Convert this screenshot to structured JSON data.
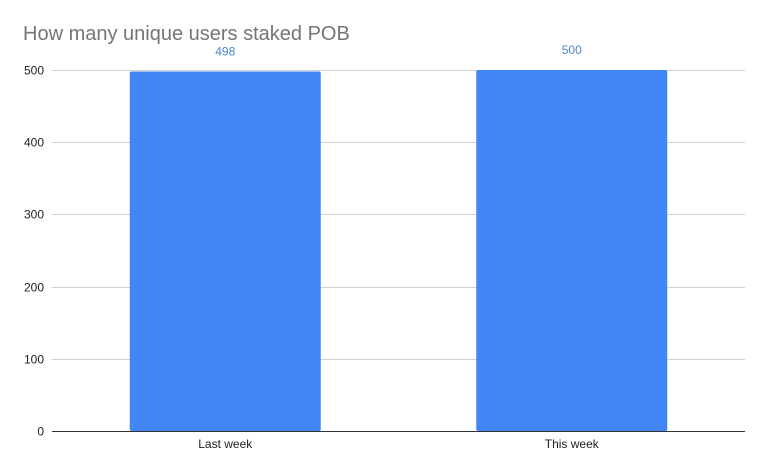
{
  "chart_data": {
    "type": "bar",
    "title": "How many unique users staked POB",
    "xlabel": "",
    "ylabel": "",
    "categories": [
      "Last week",
      "This week"
    ],
    "values": [
      498,
      500
    ],
    "data_labels": [
      "498",
      "500"
    ],
    "y_ticks": [
      0,
      100,
      200,
      300,
      400,
      500
    ],
    "ylim": [
      0,
      500
    ],
    "grid": true,
    "legend": "none",
    "colors": {
      "bar": "#4285f4",
      "data_label": "#4a86c8",
      "title": "#757575",
      "grid": "#d0d0d0",
      "axis": "#333333"
    }
  }
}
